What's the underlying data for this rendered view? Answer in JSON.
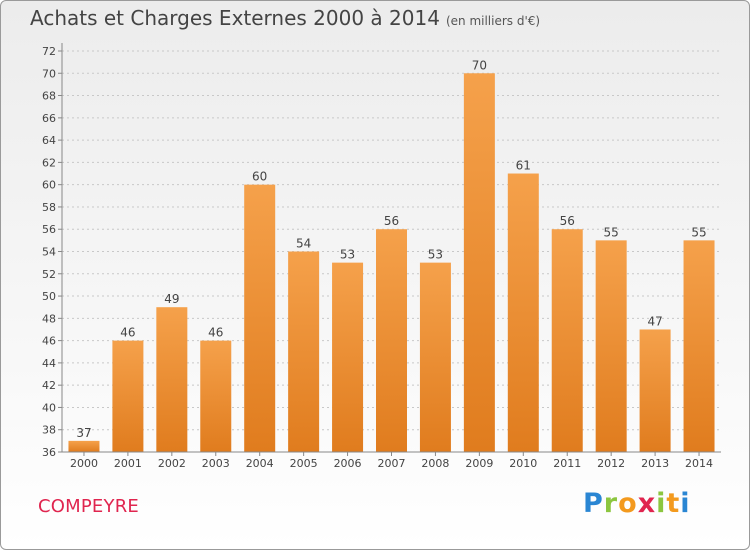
{
  "header": {
    "title": "Achats et Charges Externes 2000 à 2014",
    "unit": "(en milliers d'€)"
  },
  "commune": "COMPEYRE",
  "logo": {
    "text": "Proxiti"
  },
  "colors": {
    "bar_top": "#f5a14b",
    "bar_bottom": "#e07c1e",
    "commune_text": "#e0254f"
  },
  "chart_data": {
    "type": "bar",
    "title": "Achats et Charges Externes 2000 à 2014",
    "subtitle": "(en milliers d'€)",
    "categories": [
      "2000",
      "2001",
      "2002",
      "2003",
      "2004",
      "2005",
      "2006",
      "2007",
      "2008",
      "2009",
      "2010",
      "2011",
      "2012",
      "2013",
      "2014"
    ],
    "values": [
      37,
      46,
      49,
      46,
      60,
      54,
      53,
      56,
      53,
      70,
      61,
      56,
      55,
      47,
      55
    ],
    "ylim": [
      36,
      72
    ],
    "yticks": [
      36,
      38,
      40,
      42,
      44,
      46,
      48,
      50,
      52,
      54,
      56,
      58,
      60,
      62,
      64,
      66,
      68,
      70,
      72
    ],
    "grid": "horizontal dashed",
    "data_labels": true
  }
}
